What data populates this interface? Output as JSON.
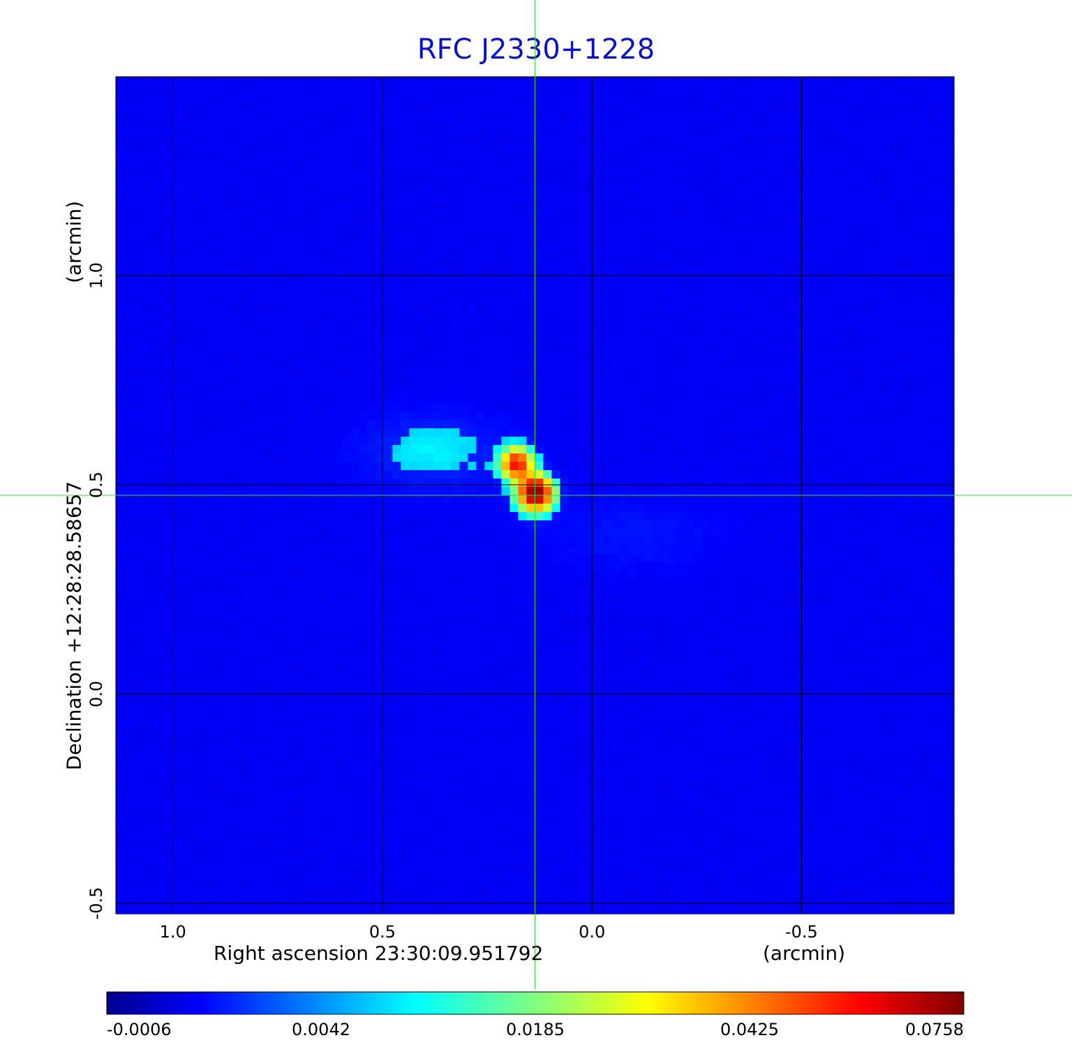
{
  "chart_data": {
    "type": "heatmap",
    "title": "RFC J2330+1228",
    "xlabel": "Right ascension  23:30:09.951792",
    "xunit": "(arcmin)",
    "ylabel": "Declination  +12:28:28.58657",
    "yunit": "(arcmin)",
    "x_ticks": [
      "1.0",
      "0.5",
      "0.0",
      "-0.5"
    ],
    "x_tick_values": [
      1.0,
      0.5,
      0.0,
      -0.5
    ],
    "y_ticks": [
      "1.0",
      "0.5",
      "0.0",
      "-0.5"
    ],
    "y_tick_values": [
      1.0,
      0.5,
      0.0,
      -0.5
    ],
    "xlim": [
      1.136,
      -0.864
    ],
    "ylim": [
      -0.525,
      1.475
    ],
    "grid": true,
    "colormap": "jet",
    "colorbar_ticks": [
      "-0.0006",
      "0.0042",
      "0.0185",
      "0.0425",
      "0.0758"
    ],
    "crosshair": {
      "x": 0.136,
      "y": 0.475,
      "color": "#30e030"
    },
    "components": [
      {
        "x": 0.18,
        "y": 0.55,
        "peak": 0.055
      },
      {
        "x": 0.135,
        "y": 0.48,
        "peak": 0.0758
      },
      {
        "x": 0.38,
        "y": 0.58,
        "peak": 0.006
      },
      {
        "x": -0.1,
        "y": 0.38,
        "peak": 0.003
      }
    ]
  }
}
